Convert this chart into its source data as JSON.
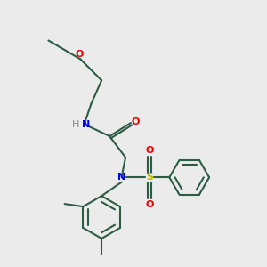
{
  "background_color": "#ebebeb",
  "line_color": "#2d5c45",
  "N_color": "#0000ee",
  "O_color": "#ee0000",
  "S_color": "#bbbb00",
  "H_color": "#888888",
  "line_width": 1.5,
  "fig_size": [
    3.0,
    3.0
  ],
  "dpi": 100,
  "xlim": [
    0,
    10
  ],
  "ylim": [
    0,
    10
  ]
}
